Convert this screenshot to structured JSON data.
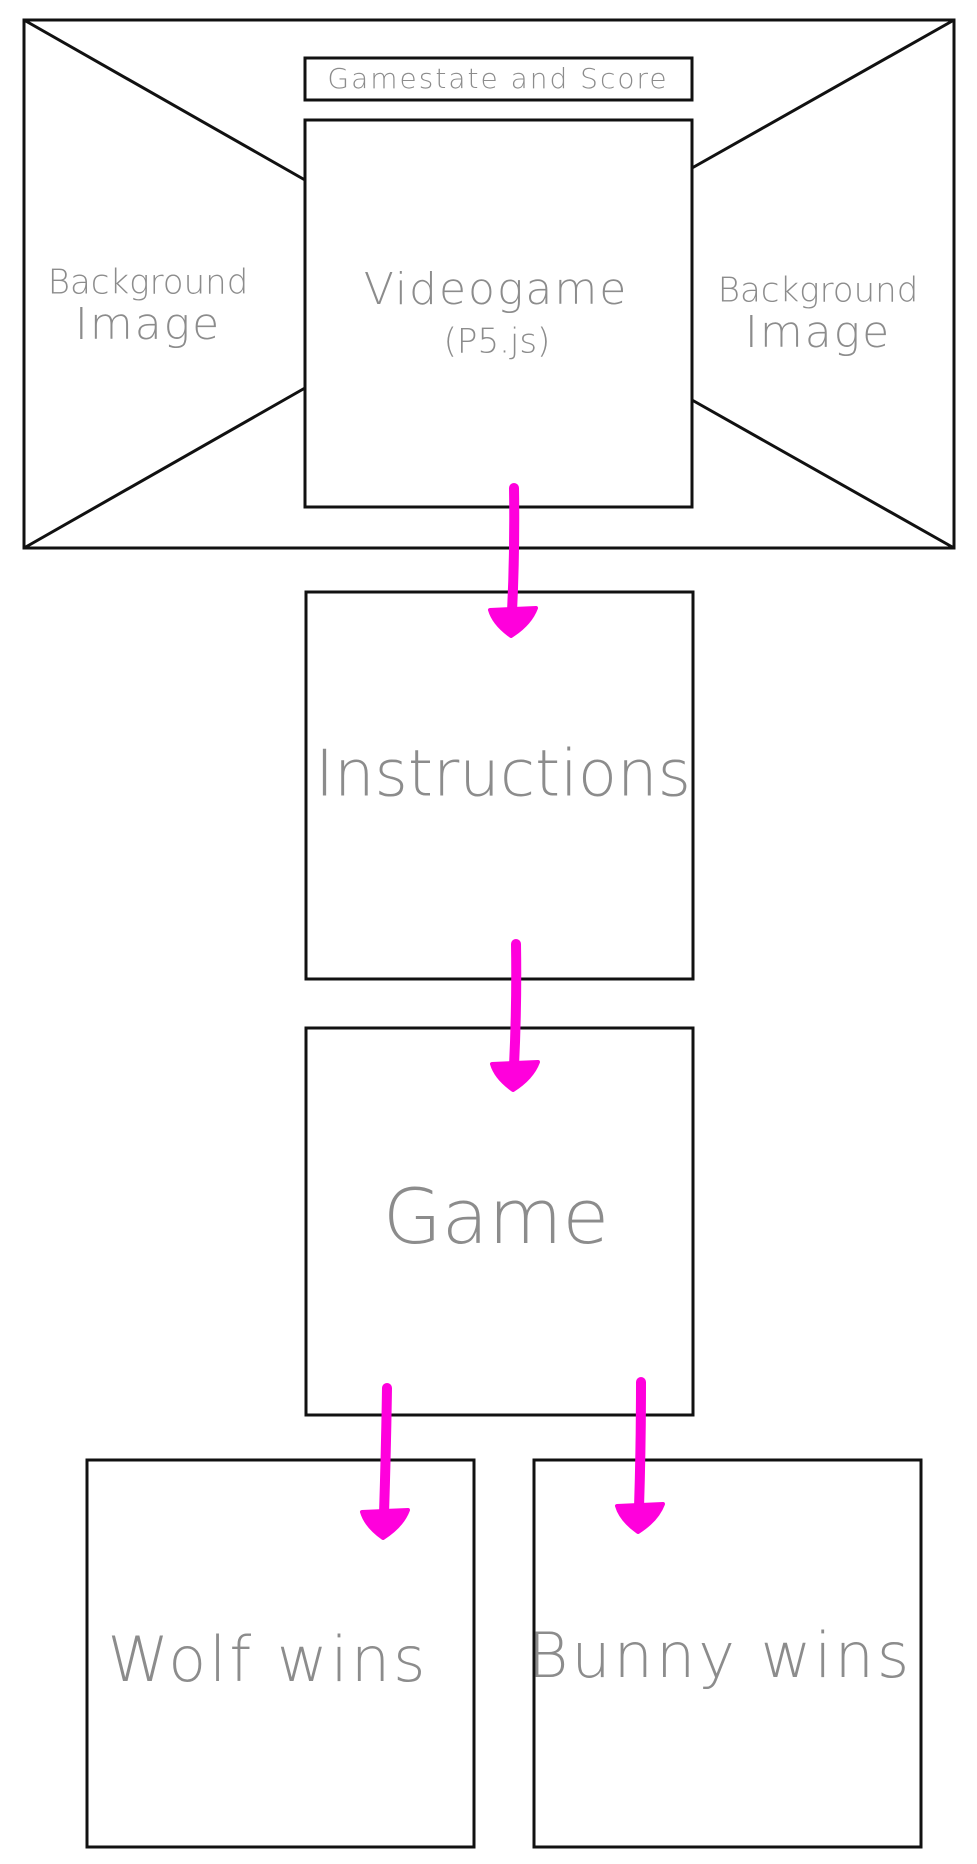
{
  "wireframe": {
    "score_bar_label": "Gamestate and Score",
    "left_background": {
      "line1": "Background",
      "line2": "Image"
    },
    "right_background": {
      "line1": "Background",
      "line2": "Image"
    },
    "videogame": {
      "line1": "Videogame",
      "line2": "(P5.js)"
    }
  },
  "flow": {
    "instructions_label": "Instructions",
    "game_label": "Game",
    "wolf_wins_label": "Wolf wins",
    "bunny_wins_label": "Bunny wins"
  },
  "colors": {
    "arrow": "#ff00dc",
    "outline": "#111111",
    "label_text": "#8c8c8c"
  }
}
